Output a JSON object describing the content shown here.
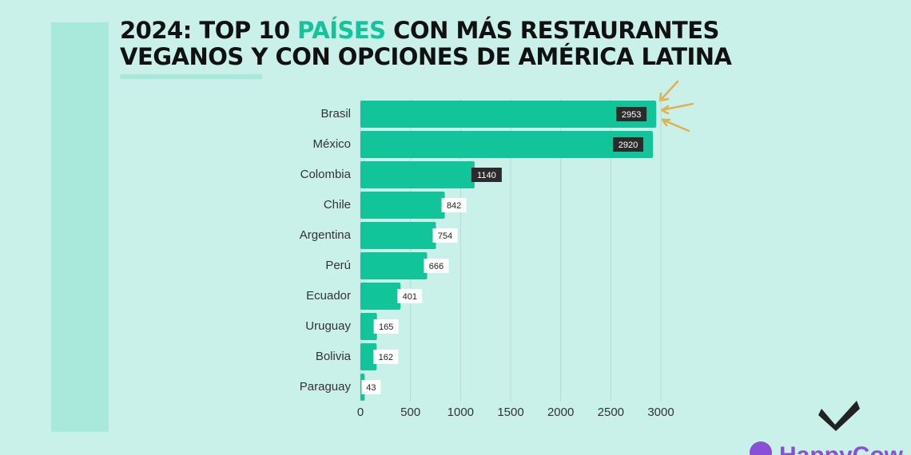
{
  "chart_data": {
    "type": "bar",
    "orientation": "horizontal",
    "title_parts": [
      "2024: TOP 10 ",
      "PAÍSES",
      " CON MÁS RESTAURANTES",
      "VEGANOS Y CON OPCIONES DE AMÉRICA LATINA"
    ],
    "title_highlight_color": "#12c49a",
    "categories": [
      "Brasil",
      "México",
      "Colombia",
      "Chile",
      "Argentina",
      "Perú",
      "Ecuador",
      "Uruguay",
      "Bolivia",
      "Paraguay"
    ],
    "values": [
      2953,
      2920,
      1140,
      842,
      754,
      666,
      401,
      165,
      162,
      43
    ],
    "color": "#12c49a",
    "xlim": [
      0,
      3000
    ],
    "xticks": [
      0,
      500,
      1000,
      1500,
      2000,
      2500,
      3000
    ],
    "grid": true
  },
  "brand": "HappyCow"
}
